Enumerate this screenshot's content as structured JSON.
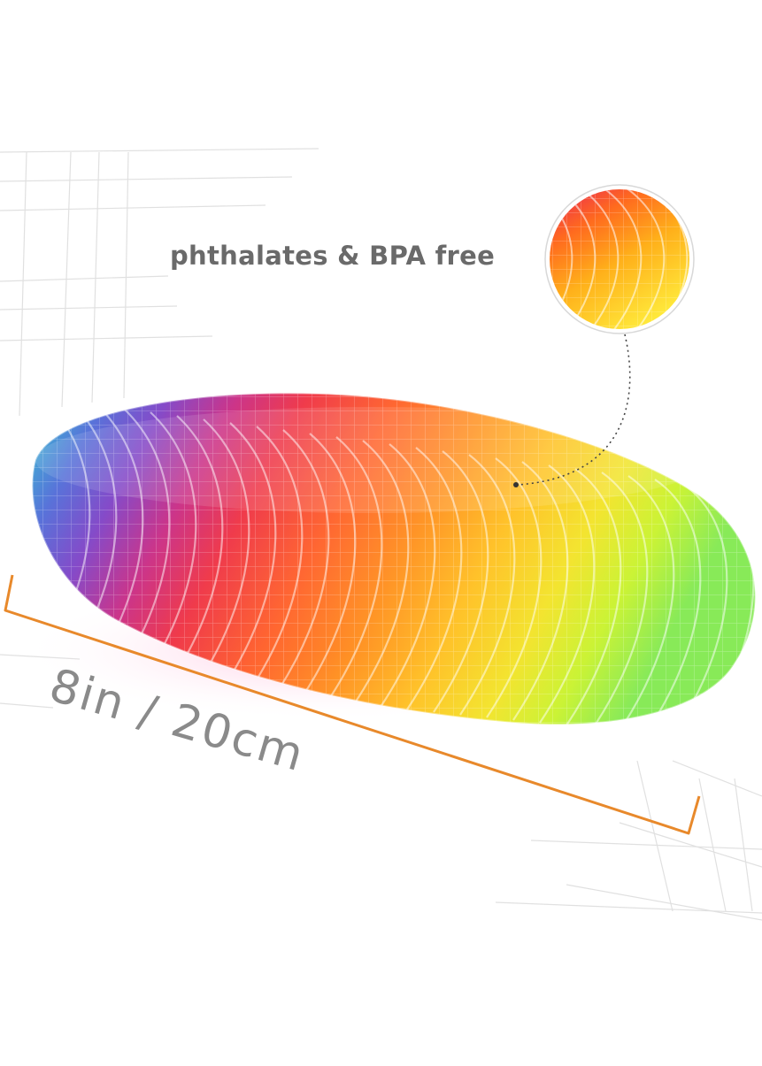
{
  "callout": {
    "text": "phthalates & BPA free"
  },
  "measurement": {
    "label": "8in / 20cm"
  },
  "colors": {
    "measure_line": "#e8892b",
    "text_gray": "#6a6a6a",
    "grid": "#dcdcdc"
  },
  "spectrum": [
    "#2ec4c9",
    "#5a4fd0",
    "#c0268a",
    "#ef2b3c",
    "#ff6a1f",
    "#ff9d12",
    "#ffd51a",
    "#d4f51a",
    "#6fe84a"
  ]
}
